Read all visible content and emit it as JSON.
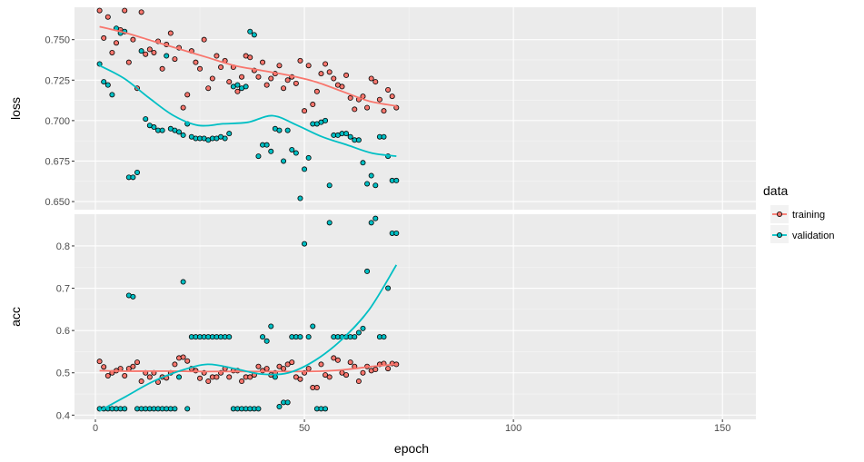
{
  "chart_data": {
    "type": "scatter",
    "xlabel": "epoch",
    "x_ticks": [
      0,
      50,
      100,
      150
    ],
    "xlim": [
      -5,
      158
    ],
    "grid": true,
    "legend": {
      "title": "data",
      "position": "right",
      "entries": [
        {
          "label": "training",
          "color": "#F8766D"
        },
        {
          "label": "validation",
          "color": "#00BFC4"
        }
      ]
    },
    "panels": [
      {
        "ylabel": "loss",
        "ylim": [
          0.645,
          0.77
        ],
        "y_ticks": [
          0.65,
          0.675,
          0.7,
          0.725,
          0.75
        ],
        "y_tick_labels": [
          "0.650",
          "0.675",
          "0.700",
          "0.725",
          "0.750"
        ],
        "series": [
          {
            "name": "training",
            "color": "#F8766D",
            "x": [
              1,
              2,
              3,
              4,
              5,
              6,
              7,
              8,
              9,
              10,
              11,
              12,
              13,
              14,
              15,
              16,
              17,
              18,
              19,
              20,
              21,
              22,
              23,
              24,
              25,
              26,
              27,
              28,
              29,
              30,
              31,
              32,
              33,
              34,
              35,
              36,
              37,
              38,
              39,
              40,
              41,
              42,
              43,
              44,
              45,
              46,
              47,
              48,
              49,
              50,
              51,
              52,
              53,
              54,
              55,
              56,
              57,
              58,
              59,
              60,
              61,
              62,
              63,
              64,
              65,
              66,
              67,
              68,
              69,
              70,
              71,
              72
            ],
            "y": [
              0.768,
              0.751,
              0.764,
              0.742,
              0.748,
              0.756,
              0.768,
              0.736,
              0.75,
              0.72,
              0.767,
              0.741,
              0.744,
              0.742,
              0.749,
              0.732,
              0.747,
              0.754,
              0.738,
              0.745,
              0.708,
              0.716,
              0.743,
              0.736,
              0.732,
              0.75,
              0.72,
              0.726,
              0.74,
              0.733,
              0.737,
              0.724,
              0.733,
              0.718,
              0.727,
              0.74,
              0.739,
              0.731,
              0.727,
              0.736,
              0.722,
              0.726,
              0.729,
              0.734,
              0.72,
              0.725,
              0.727,
              0.723,
              0.737,
              0.706,
              0.734,
              0.71,
              0.718,
              0.729,
              0.735,
              0.73,
              0.726,
              0.722,
              0.721,
              0.728,
              0.714,
              0.707,
              0.713,
              0.715,
              0.708,
              0.726,
              0.724,
              0.713,
              0.706,
              0.719,
              0.715,
              0.708
            ],
            "trend": [
              0.758,
              0.754,
              0.749,
              0.744,
              0.739,
              0.734,
              0.731,
              0.728,
              0.724,
              0.718,
              0.712,
              0.709
            ]
          },
          {
            "name": "validation",
            "color": "#00BFC4",
            "x": [
              1,
              2,
              3,
              4,
              5,
              6,
              7,
              8,
              9,
              10,
              11,
              12,
              13,
              14,
              15,
              16,
              17,
              18,
              19,
              20,
              21,
              22,
              23,
              24,
              25,
              26,
              27,
              28,
              29,
              30,
              31,
              32,
              33,
              34,
              35,
              36,
              37,
              38,
              39,
              40,
              41,
              42,
              43,
              44,
              45,
              46,
              47,
              48,
              49,
              50,
              51,
              52,
              53,
              54,
              55,
              56,
              57,
              58,
              59,
              60,
              61,
              62,
              63,
              64,
              65,
              66,
              67,
              68,
              69,
              70,
              71,
              72
            ],
            "y": [
              0.735,
              0.724,
              0.722,
              0.716,
              0.757,
              0.754,
              0.755,
              0.665,
              0.665,
              0.668,
              0.743,
              0.701,
              0.697,
              0.696,
              0.694,
              0.694,
              0.74,
              0.695,
              0.694,
              0.693,
              0.691,
              0.698,
              0.69,
              0.689,
              0.689,
              0.689,
              0.688,
              0.689,
              0.689,
              0.69,
              0.689,
              0.692,
              0.721,
              0.722,
              0.72,
              0.721,
              0.755,
              0.753,
              0.678,
              0.685,
              0.685,
              0.681,
              0.695,
              0.694,
              0.675,
              0.694,
              0.682,
              0.68,
              0.652,
              0.67,
              0.677,
              0.698,
              0.698,
              0.699,
              0.7,
              0.66,
              0.691,
              0.691,
              0.692,
              0.692,
              0.69,
              0.688,
              0.688,
              0.674,
              0.661,
              0.666,
              0.66,
              0.69,
              0.69,
              0.678,
              0.663,
              0.663
            ],
            "trend": [
              0.734,
              0.726,
              0.714,
              0.703,
              0.697,
              0.698,
              0.699,
              0.703,
              0.697,
              0.69,
              0.685,
              0.68,
              0.678
            ]
          }
        ]
      },
      {
        "ylabel": "acc",
        "ylim": [
          0.39,
          0.875
        ],
        "y_ticks": [
          0.4,
          0.5,
          0.6,
          0.7,
          0.8
        ],
        "y_tick_labels": [
          "0.4",
          "0.5",
          "0.6",
          "0.7",
          "0.8"
        ],
        "series": [
          {
            "name": "training",
            "color": "#F8766D",
            "x": [
              1,
              2,
              3,
              4,
              5,
              6,
              7,
              8,
              9,
              10,
              11,
              12,
              13,
              14,
              15,
              16,
              17,
              18,
              19,
              20,
              21,
              22,
              23,
              24,
              25,
              26,
              27,
              28,
              29,
              30,
              31,
              32,
              33,
              34,
              35,
              36,
              37,
              38,
              39,
              40,
              41,
              42,
              43,
              44,
              45,
              46,
              47,
              48,
              49,
              50,
              51,
              52,
              53,
              54,
              55,
              56,
              57,
              58,
              59,
              60,
              61,
              62,
              63,
              64,
              65,
              66,
              67,
              68,
              69,
              70,
              71,
              72
            ],
            "y": [
              0.527,
              0.514,
              0.493,
              0.5,
              0.505,
              0.51,
              0.493,
              0.51,
              0.515,
              0.525,
              0.48,
              0.5,
              0.49,
              0.5,
              0.478,
              0.49,
              0.488,
              0.5,
              0.52,
              0.535,
              0.537,
              0.528,
              0.51,
              0.505,
              0.487,
              0.5,
              0.48,
              0.49,
              0.49,
              0.5,
              0.51,
              0.49,
              0.505,
              0.505,
              0.48,
              0.49,
              0.49,
              0.495,
              0.515,
              0.505,
              0.51,
              0.495,
              0.5,
              0.515,
              0.51,
              0.52,
              0.525,
              0.49,
              0.485,
              0.5,
              0.51,
              0.465,
              0.465,
              0.52,
              0.495,
              0.49,
              0.535,
              0.53,
              0.5,
              0.495,
              0.525,
              0.515,
              0.48,
              0.5,
              0.515,
              0.505,
              0.508,
              0.52,
              0.522,
              0.51,
              0.522,
              0.52
            ],
            "trend": [
              0.505,
              0.504,
              0.504,
              0.504,
              0.503,
              0.503,
              0.503,
              0.503,
              0.503,
              0.504,
              0.508,
              0.515,
              0.52
            ]
          },
          {
            "name": "validation",
            "color": "#00BFC4",
            "x": [
              1,
              2,
              3,
              4,
              5,
              6,
              7,
              8,
              9,
              10,
              11,
              12,
              13,
              14,
              15,
              16,
              17,
              18,
              19,
              20,
              21,
              22,
              23,
              24,
              25,
              26,
              27,
              28,
              29,
              30,
              31,
              32,
              33,
              34,
              35,
              36,
              37,
              38,
              39,
              40,
              41,
              42,
              43,
              44,
              45,
              46,
              47,
              48,
              49,
              50,
              51,
              52,
              53,
              54,
              55,
              56,
              57,
              58,
              59,
              60,
              61,
              62,
              63,
              64,
              65,
              66,
              67,
              68,
              69,
              70,
              71,
              72
            ],
            "y": [
              0.415,
              0.415,
              0.415,
              0.415,
              0.415,
              0.415,
              0.415,
              0.683,
              0.68,
              0.415,
              0.415,
              0.415,
              0.415,
              0.415,
              0.415,
              0.415,
              0.415,
              0.415,
              0.415,
              0.49,
              0.715,
              0.415,
              0.585,
              0.585,
              0.585,
              0.585,
              0.585,
              0.585,
              0.585,
              0.585,
              0.585,
              0.585,
              0.415,
              0.415,
              0.415,
              0.415,
              0.415,
              0.415,
              0.415,
              0.585,
              0.575,
              0.61,
              0.49,
              0.42,
              0.43,
              0.43,
              0.585,
              0.585,
              0.585,
              0.805,
              0.585,
              0.61,
              0.415,
              0.415,
              0.415,
              0.855,
              0.585,
              0.585,
              0.585,
              0.585,
              0.585,
              0.585,
              0.595,
              0.605,
              0.74,
              0.855,
              0.865,
              0.585,
              0.585,
              0.7,
              0.83,
              0.83
            ],
            "trend": [
              0.41,
              0.445,
              0.48,
              0.505,
              0.52,
              0.51,
              0.497,
              0.5,
              0.53,
              0.58,
              0.65,
              0.755
            ]
          }
        ]
      }
    ]
  }
}
